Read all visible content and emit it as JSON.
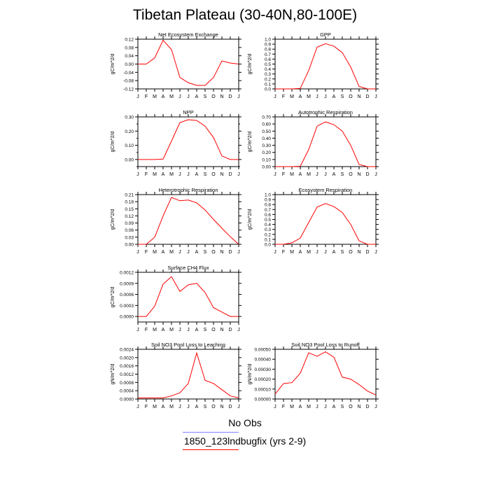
{
  "page": {
    "title": "Tibetan Plateau (30-40N,80-100E)"
  },
  "legend": {
    "obs_label": "No Obs",
    "model_label": "1850_123lndbugfix (yrs 2-9)",
    "obs_color": "#8080ff",
    "model_color": "#ff0000"
  },
  "chart_data": [
    {
      "type": "line",
      "title": "Net Ecosystem Exchange",
      "ylabel": "gC/m^2/d",
      "categories": [
        "J",
        "F",
        "M",
        "A",
        "M",
        "J",
        "J",
        "A",
        "S",
        "O",
        "N",
        "D",
        "J"
      ],
      "ylim": [
        -0.12,
        0.12
      ],
      "yticks": [
        "-0.12",
        "-0.08",
        "-0.04",
        "0.00",
        "0.04",
        "0.08",
        "0.12"
      ],
      "series": [
        {
          "name": "1850_123lndbugfix (yrs 2-9)",
          "color": "#ff0000",
          "values": [
            0.0,
            0.0,
            0.03,
            0.115,
            0.07,
            -0.065,
            -0.09,
            -0.103,
            -0.103,
            -0.065,
            0.015,
            0.005,
            0.0
          ]
        }
      ]
    },
    {
      "type": "line",
      "title": "GPP",
      "ylabel": "gC/m^2/d",
      "categories": [
        "J",
        "F",
        "M",
        "A",
        "M",
        "J",
        "J",
        "A",
        "S",
        "O",
        "N",
        "D",
        "J"
      ],
      "ylim": [
        0,
        1.0
      ],
      "yticks": [
        "0.0",
        "0.1",
        "0.2",
        "0.3",
        "0.4",
        "0.5",
        "0.6",
        "0.7",
        "0.8",
        "0.9",
        "1.0"
      ],
      "series": [
        {
          "name": "1850_123lndbugfix (yrs 2-9)",
          "color": "#ff0000",
          "values": [
            0.0,
            0.0,
            0.0,
            0.01,
            0.37,
            0.84,
            0.91,
            0.86,
            0.73,
            0.44,
            0.05,
            0.0,
            0.0
          ]
        }
      ]
    },
    {
      "type": "line",
      "title": "NPP",
      "ylabel": "gC/m^2/d",
      "categories": [
        "J",
        "F",
        "M",
        "A",
        "M",
        "J",
        "J",
        "A",
        "S",
        "O",
        "N",
        "D",
        "J"
      ],
      "ylim": [
        -0.05,
        0.3
      ],
      "yticks": [
        "0.00",
        "0.10",
        "0.20",
        "0.30"
      ],
      "yticks_minor": [
        -0.05,
        0.05,
        0.15,
        0.25
      ],
      "series": [
        {
          "name": "1850_123lndbugfix (yrs 2-9)",
          "color": "#ff0000",
          "values": [
            0.0,
            0.0,
            0.0,
            0.003,
            0.13,
            0.26,
            0.28,
            0.275,
            0.235,
            0.155,
            0.025,
            0.0,
            0.0
          ]
        }
      ]
    },
    {
      "type": "line",
      "title": "Autotrophic Respiration",
      "ylabel": "gC/m^2/d",
      "categories": [
        "J",
        "F",
        "M",
        "A",
        "M",
        "J",
        "J",
        "A",
        "S",
        "O",
        "N",
        "D",
        "J"
      ],
      "ylim": [
        0,
        0.7
      ],
      "yticks": [
        "0.00",
        "0.10",
        "0.20",
        "0.30",
        "0.40",
        "0.50",
        "0.60",
        "0.70"
      ],
      "series": [
        {
          "name": "1850_123lndbugfix (yrs 2-9)",
          "color": "#ff0000",
          "values": [
            0.0,
            0.0,
            0.0,
            0.005,
            0.24,
            0.57,
            0.63,
            0.59,
            0.5,
            0.3,
            0.03,
            0.0,
            0.0
          ]
        }
      ]
    },
    {
      "type": "line",
      "title": "Heterotrophic Respiration",
      "ylabel": "gC/m^2/d",
      "categories": [
        "J",
        "F",
        "M",
        "A",
        "M",
        "J",
        "J",
        "A",
        "S",
        "O",
        "N",
        "D",
        "J"
      ],
      "ylim": [
        0,
        0.21
      ],
      "yticks": [
        "0.00",
        "0.03",
        "0.06",
        "0.09",
        "0.12",
        "0.15",
        "0.18",
        "0.21"
      ],
      "series": [
        {
          "name": "1850_123lndbugfix (yrs 2-9)",
          "color": "#ff0000",
          "values": [
            0.0,
            0.0,
            0.03,
            0.12,
            0.198,
            0.184,
            0.187,
            0.175,
            0.145,
            0.105,
            0.068,
            0.032,
            0.0
          ]
        }
      ]
    },
    {
      "type": "line",
      "title": "Ecosystem Respiration",
      "ylabel": "gC/m^2/d",
      "categories": [
        "J",
        "F",
        "M",
        "A",
        "M",
        "J",
        "J",
        "A",
        "S",
        "O",
        "N",
        "D",
        "J"
      ],
      "ylim": [
        0,
        1.0
      ],
      "yticks": [
        "0.0",
        "0.1",
        "0.2",
        "0.3",
        "0.4",
        "0.5",
        "0.6",
        "0.7",
        "0.8",
        "0.9",
        "1.0"
      ],
      "series": [
        {
          "name": "1850_123lndbugfix (yrs 2-9)",
          "color": "#ff0000",
          "values": [
            0.0,
            0.0,
            0.03,
            0.125,
            0.44,
            0.75,
            0.82,
            0.76,
            0.64,
            0.4,
            0.07,
            0.0,
            0.0
          ]
        }
      ]
    },
    {
      "type": "line",
      "title": "Surface CH4 Flux",
      "ylabel": "gC/m^2/d",
      "categories": [
        "J",
        "F",
        "M",
        "A",
        "M",
        "J",
        "J",
        "A",
        "S",
        "O",
        "N",
        "D",
        "J"
      ],
      "ylim": [
        -0.00015,
        0.0012
      ],
      "yticks": [
        "0.0000",
        "0.0003",
        "0.0006",
        "0.0009",
        "0.0012"
      ],
      "series": [
        {
          "name": "1850_123lndbugfix (yrs 2-9)",
          "color": "#ff0000",
          "values": [
            0.0,
            0.0,
            0.00028,
            0.00088,
            0.00108,
            0.00068,
            0.00086,
            0.0009,
            0.00065,
            0.00024,
            0.00012,
            0.0,
            0.0
          ]
        }
      ]
    },
    {
      "type": "line",
      "title": "Soil NO3 Pool Loss to Leaching",
      "ylabel": "gN/m^2/d",
      "categories": [
        "J",
        "F",
        "M",
        "A",
        "M",
        "J",
        "J",
        "A",
        "S",
        "O",
        "N",
        "D",
        "J"
      ],
      "ylim": [
        0,
        0.0024
      ],
      "yticks": [
        "0.0000",
        "0.0004",
        "0.0008",
        "0.0012",
        "0.0016",
        "0.0020",
        "0.0024"
      ],
      "series": [
        {
          "name": "1850_123lndbugfix (yrs 2-9)",
          "color": "#ff0000",
          "values": [
            5e-05,
            5e-05,
            5e-05,
            5e-05,
            0.00015,
            0.0003,
            0.00075,
            0.00222,
            0.0009,
            0.00075,
            0.00045,
            0.00015,
            5e-05
          ]
        }
      ]
    },
    {
      "type": "line",
      "title": "Soil NO3 Pool Loss to Runoff",
      "ylabel": "gN/m^2/d",
      "categories": [
        "J",
        "F",
        "M",
        "A",
        "M",
        "J",
        "J",
        "A",
        "S",
        "O",
        "N",
        "D",
        "J"
      ],
      "ylim": [
        0,
        0.0005
      ],
      "yticks": [
        "0.00000",
        "0.00010",
        "0.00020",
        "0.00030",
        "0.00040",
        "0.00050"
      ],
      "series": [
        {
          "name": "1850_123lndbugfix (yrs 2-9)",
          "color": "#ff0000",
          "values": [
            5e-05,
            0.000155,
            0.000165,
            0.00026,
            0.000465,
            0.00043,
            0.000475,
            0.00042,
            0.00022,
            0.0002,
            0.000145,
            8e-05,
            4e-05
          ]
        }
      ]
    }
  ]
}
